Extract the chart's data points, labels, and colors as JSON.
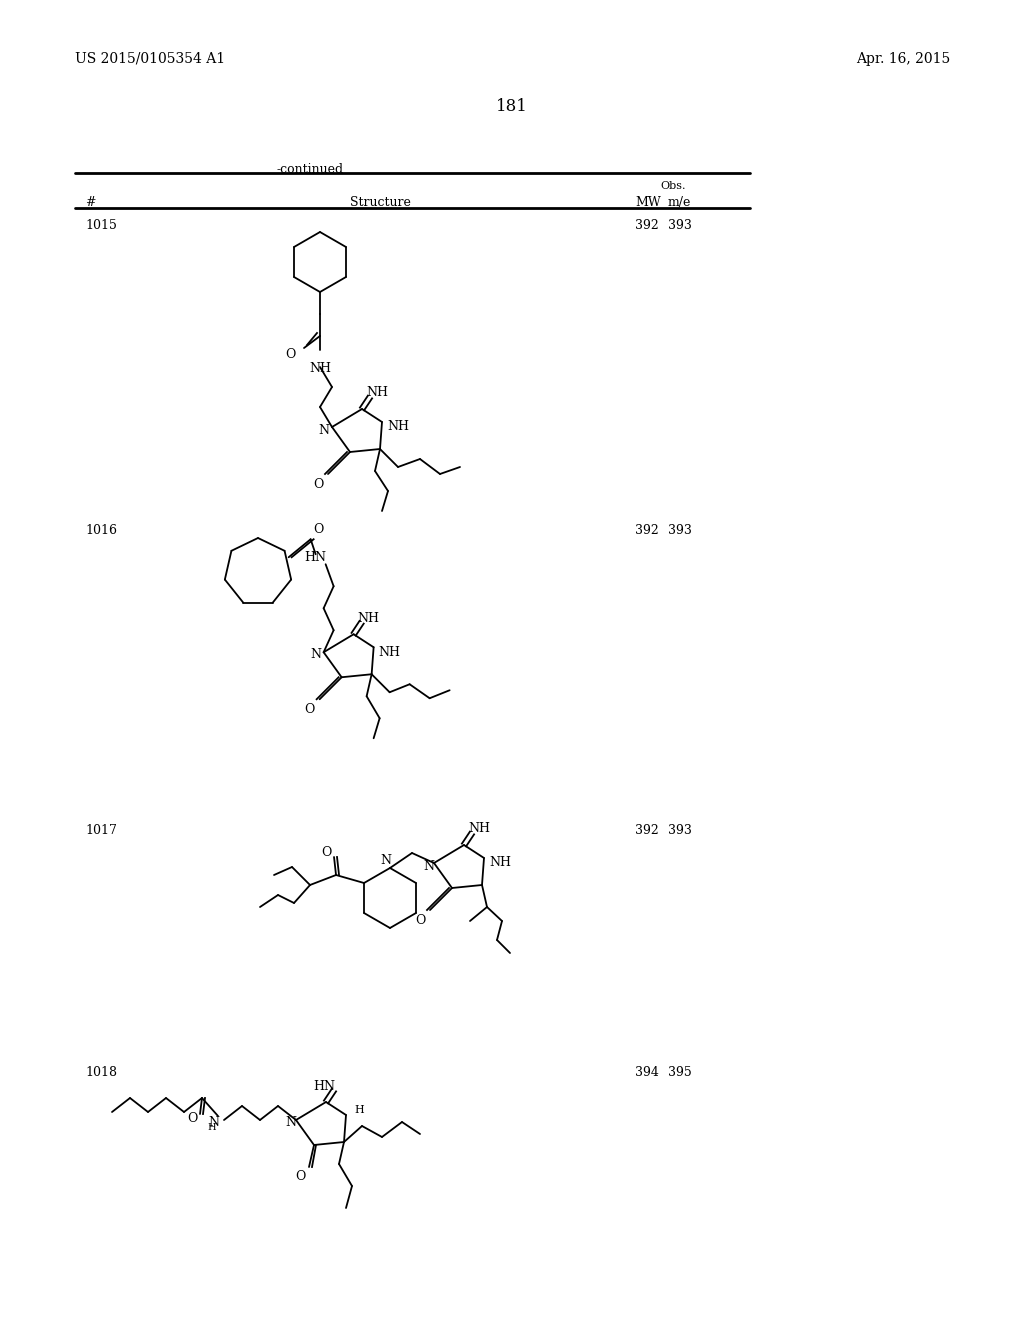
{
  "page_number": "181",
  "patent_number": "US 2015/0105354 A1",
  "patent_date": "Apr. 16, 2015",
  "continued_label": "-continued",
  "bg_color": "#ffffff",
  "compounds": [
    {
      "id": "1015",
      "mw": "392",
      "obs": "393"
    },
    {
      "id": "1016",
      "mw": "392",
      "obs": "393"
    },
    {
      "id": "1017",
      "mw": "392",
      "obs": "393"
    },
    {
      "id": "1018",
      "mw": "394",
      "obs": "395"
    }
  ]
}
